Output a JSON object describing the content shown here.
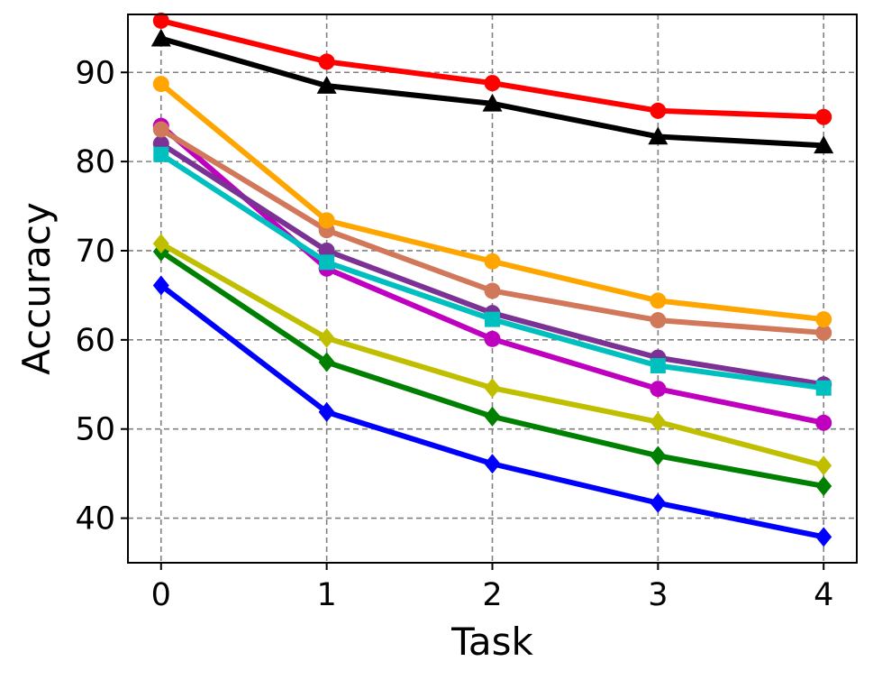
{
  "chart_data": {
    "type": "line",
    "xlabel": "Task",
    "ylabel": "Accuracy",
    "x": [
      0,
      1,
      2,
      3,
      4
    ],
    "xlim": [
      -0.2,
      4.2
    ],
    "ylim": [
      35,
      96.5
    ],
    "xticks": [
      "0",
      "1",
      "2",
      "3",
      "4"
    ],
    "yticks": [
      40,
      50,
      60,
      70,
      80,
      90
    ],
    "grid": true,
    "series": [
      {
        "color": "#ff0000",
        "marker": "circle",
        "values": [
          95.8,
          91.2,
          88.8,
          85.7,
          85.0
        ]
      },
      {
        "color": "#000000",
        "marker": "triangle",
        "values": [
          93.8,
          88.5,
          86.5,
          82.8,
          81.8
        ]
      },
      {
        "color": "#ffa500",
        "marker": "circle",
        "values": [
          88.7,
          73.4,
          68.8,
          64.4,
          62.3
        ]
      },
      {
        "color": "#d2785a",
        "marker": "circle",
        "values": [
          83.6,
          72.3,
          65.5,
          62.2,
          60.8
        ]
      },
      {
        "color": "#00bfbf",
        "marker": "square",
        "values": [
          80.8,
          68.7,
          62.3,
          57.1,
          54.6
        ]
      },
      {
        "color": "#7b3294",
        "marker": "circle",
        "values": [
          82.0,
          70.0,
          63.0,
          58.0,
          55.0
        ]
      },
      {
        "color": "#bf00bf",
        "marker": "circle",
        "values": [
          84.0,
          68.0,
          60.1,
          54.5,
          50.7
        ]
      },
      {
        "color": "#bfbf00",
        "marker": "diamond",
        "values": [
          70.8,
          60.2,
          54.6,
          50.8,
          45.9
        ]
      },
      {
        "color": "#008000",
        "marker": "diamond",
        "values": [
          69.9,
          57.5,
          51.4,
          47.0,
          43.6
        ]
      },
      {
        "color": "#0000ff",
        "marker": "diamond",
        "values": [
          66.1,
          51.9,
          46.1,
          41.7,
          37.9
        ]
      }
    ]
  }
}
